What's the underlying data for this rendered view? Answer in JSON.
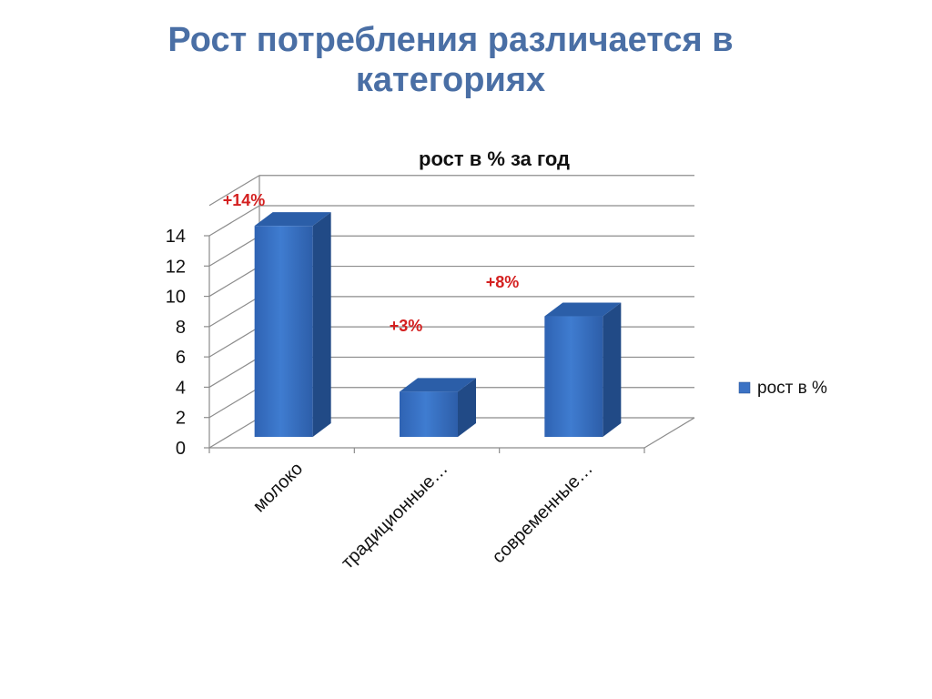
{
  "slide": {
    "title_line1": "Рост потребления различается в",
    "title_line2": "категориях"
  },
  "chart_data": {
    "type": "bar",
    "title": "рост в % за год",
    "categories": [
      "молоко",
      "традиционные…",
      "современные…"
    ],
    "series": [
      {
        "name": "рост в %",
        "values": [
          14,
          3,
          8
        ]
      }
    ],
    "data_labels": [
      "+14%",
      "+3%",
      "+8%"
    ],
    "ylim": [
      0,
      14
    ],
    "yticks": [
      0,
      2,
      4,
      6,
      8,
      10,
      12,
      14
    ],
    "grid": true,
    "legend_position": "right",
    "bar_color": "#3b72c4",
    "label_color": "#d42020"
  }
}
